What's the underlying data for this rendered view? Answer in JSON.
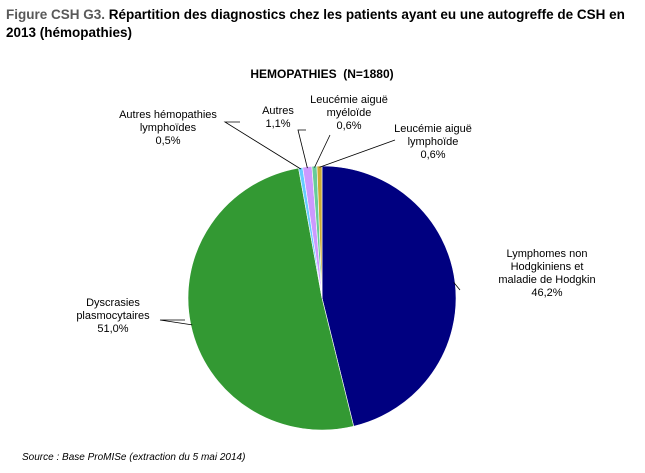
{
  "figure": {
    "title_prefix": "Figure CSH G3.",
    "title_text": " Répartition des diagnostics chez les patients ayant eu une autogreffe de CSH en 2013 (hémopathies)"
  },
  "source": "Source : Base ProMISe (extraction du 5 mai 2014)",
  "chart_data": {
    "type": "pie",
    "title": "HEMOPATHIES  (N=1880)",
    "slices": [
      {
        "label_lines": [
          "Lymphomes non",
          "Hodgkiniens et",
          "maladie de Hodgkin"
        ],
        "percent_text": "46,2%",
        "value": 46.2,
        "color": "#000080"
      },
      {
        "label_lines": [
          "Dyscrasies",
          "plasmocytaires"
        ],
        "percent_text": "51,0%",
        "value": 51.0,
        "color": "#339933"
      },
      {
        "label_lines": [
          "Autres hémopathies",
          "lymphoïdes"
        ],
        "percent_text": "0,5%",
        "value": 0.5,
        "color": "#66ccff"
      },
      {
        "label_lines": [
          "Autres"
        ],
        "percent_text": "1,1%",
        "value": 1.1,
        "color": "#cc99ff"
      },
      {
        "label_lines": [
          "Leucémie aiguë",
          "myéloïde"
        ],
        "percent_text": "0,6%",
        "value": 0.6,
        "color": "#66cc99"
      },
      {
        "label_lines": [
          "Leucémie aiguë",
          "lymphoïde"
        ],
        "percent_text": "0,6%",
        "value": 0.6,
        "color": "#ccaa33"
      }
    ]
  }
}
